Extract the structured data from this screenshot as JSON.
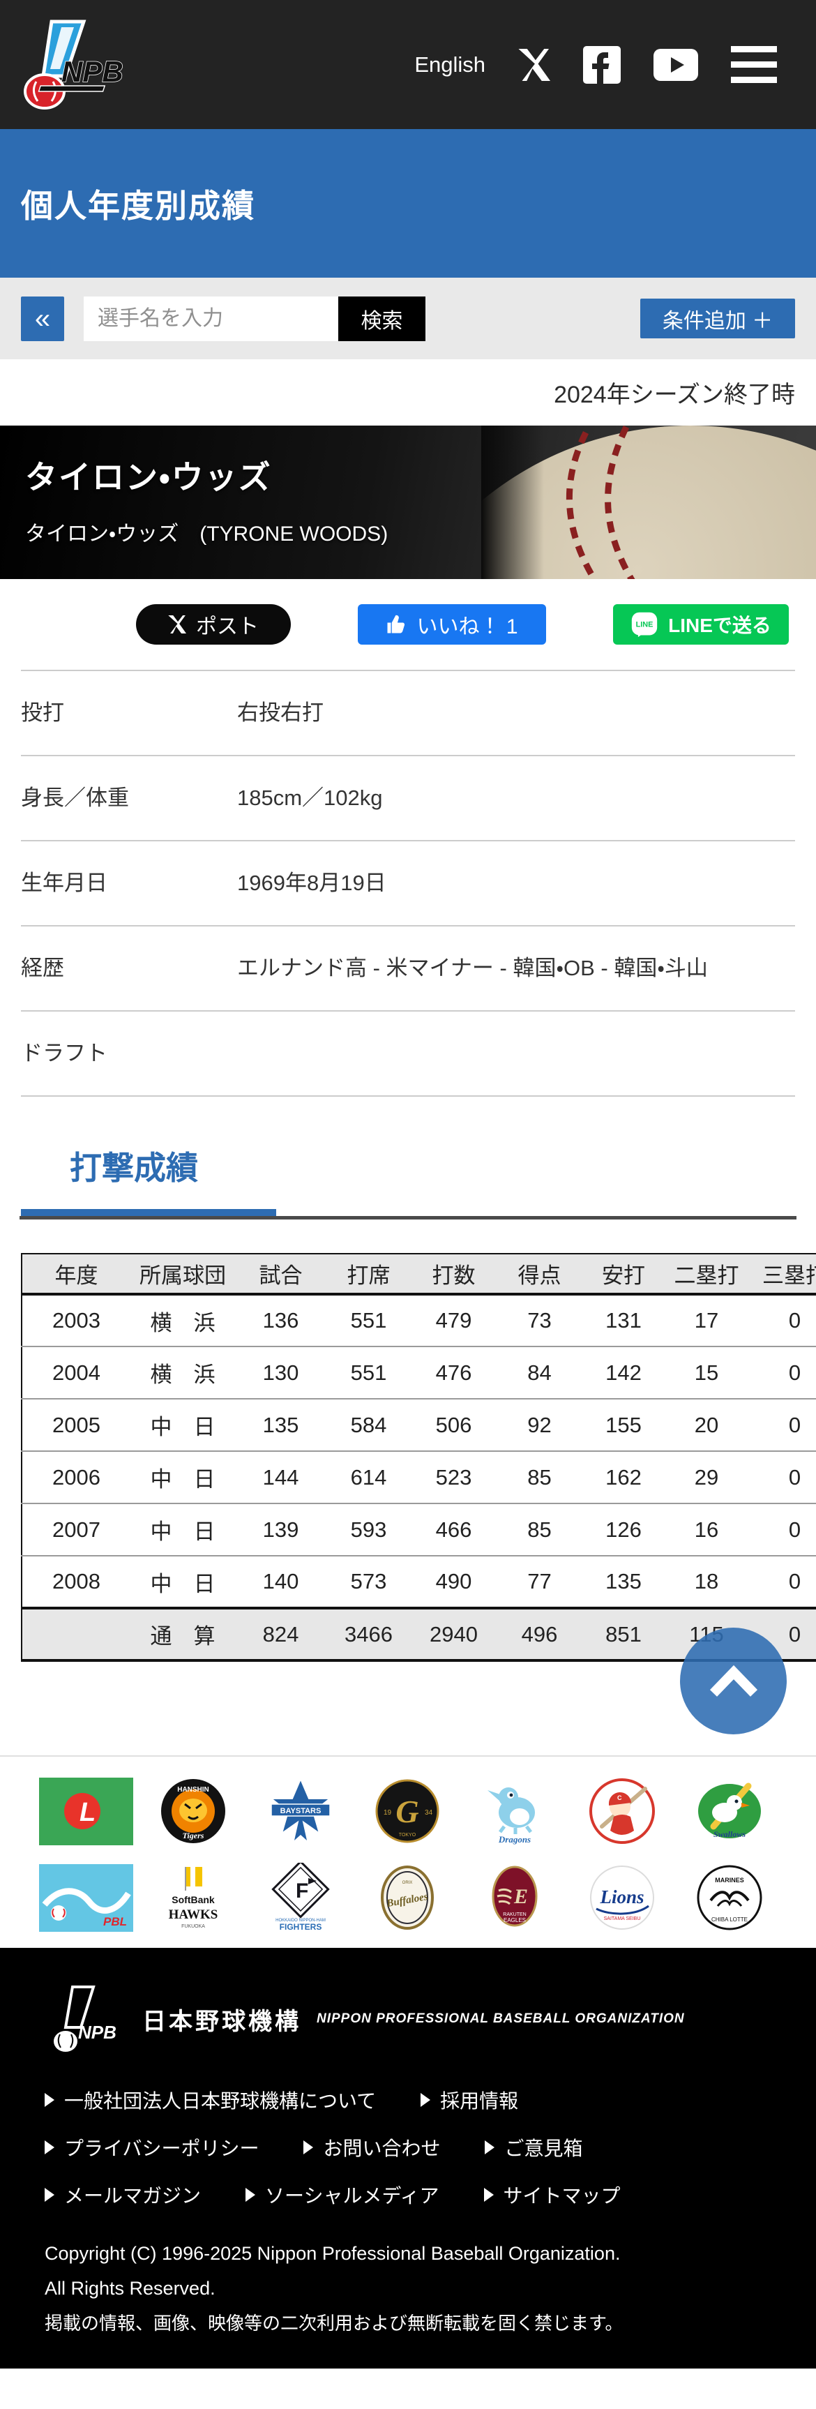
{
  "header": {
    "language_link": "English",
    "icons": [
      "x-icon",
      "facebook-icon",
      "youtube-icon",
      "menu-icon"
    ]
  },
  "page_banner": {
    "title": "個人年度別成績"
  },
  "search": {
    "collapse_label": "«",
    "placeholder": "選手名を入力",
    "search_button": "検索",
    "add_condition_button": "条件追加 ＋"
  },
  "season_note": "2024年シーズン終了時",
  "player": {
    "name_main": "タイロン・ウッズ",
    "name_sub": "タイロン・ウッズ　(TYRONE WOODS)"
  },
  "share": {
    "post_label": "ポスト",
    "like_label": "いいね！ 1",
    "line_label": "LINEで送る"
  },
  "profile": {
    "rows": [
      {
        "label": "投打",
        "value": "右投右打"
      },
      {
        "label": "身長／体重",
        "value": "185cm／102kg"
      },
      {
        "label": "生年月日",
        "value": "1969年8月19日"
      },
      {
        "label": "経歴",
        "value": "エルナンド高 - 米マイナー - 韓国・OB - 韓国・斗山"
      },
      {
        "label": "ドラフト",
        "value": ""
      }
    ]
  },
  "batting": {
    "section_title": "打撃成績",
    "columns": [
      "年度",
      "所属球団",
      "試合",
      "打席",
      "打数",
      "得点",
      "安打",
      "二塁打",
      "三塁打"
    ],
    "rows": [
      [
        "2003",
        "横　浜",
        "136",
        "551",
        "479",
        "73",
        "131",
        "17",
        "0"
      ],
      [
        "2004",
        "横　浜",
        "130",
        "551",
        "476",
        "84",
        "142",
        "15",
        "0"
      ],
      [
        "2005",
        "中　日",
        "135",
        "584",
        "506",
        "92",
        "155",
        "20",
        "0"
      ],
      [
        "2006",
        "中　日",
        "144",
        "614",
        "523",
        "85",
        "162",
        "29",
        "0"
      ],
      [
        "2007",
        "中　日",
        "139",
        "593",
        "466",
        "85",
        "126",
        "16",
        "0"
      ],
      [
        "2008",
        "中　日",
        "140",
        "573",
        "490",
        "77",
        "135",
        "18",
        "0"
      ]
    ],
    "total_row": [
      "",
      "通　算",
      "824",
      "3466",
      "2940",
      "496",
      "851",
      "115",
      "0"
    ]
  },
  "teams": {
    "central": [
      {
        "name": "セントラル・リーグ"
      },
      {
        "name": "阪神タイガース"
      },
      {
        "name": "横浜DeNAベイスターズ"
      },
      {
        "name": "読売ジャイアンツ"
      },
      {
        "name": "中日ドラゴンズ"
      },
      {
        "name": "広島東洋カープ"
      },
      {
        "name": "東京ヤクルトスワローズ"
      }
    ],
    "pacific": [
      {
        "name": "パシフィック・リーグ"
      },
      {
        "name": "福岡ソフトバンクホークス"
      },
      {
        "name": "北海道日本ハムファイターズ"
      },
      {
        "name": "オリックス・バファローズ"
      },
      {
        "name": "東北楽天ゴールデンイーグルス"
      },
      {
        "name": "埼玉西武ライオンズ"
      },
      {
        "name": "千葉ロッテマリーンズ"
      }
    ]
  },
  "footer": {
    "brand_ja": "日本野球機構",
    "brand_en": "NIPPON PROFESSIONAL BASEBALL ORGANIZATION",
    "link_rows": [
      [
        "一般社団法人日本野球機構について",
        "採用情報"
      ],
      [
        "プライバシーポリシー",
        "お問い合わせ",
        "ご意見箱"
      ],
      [
        "メールマガジン",
        "ソーシャルメディア",
        "サイトマップ"
      ]
    ],
    "copyright_lines": [
      "Copyright (C) 1996-2025 Nippon Professional Baseball Organization.",
      "All Rights Reserved.",
      "掲載の情報、画像、映像等の二次利用および無断転載を固く禁じます。"
    ]
  },
  "colors": {
    "accent_blue": "#2d6cb2",
    "header_dark": "#232323",
    "facebook_blue": "#1877f2",
    "line_green": "#06c755"
  }
}
